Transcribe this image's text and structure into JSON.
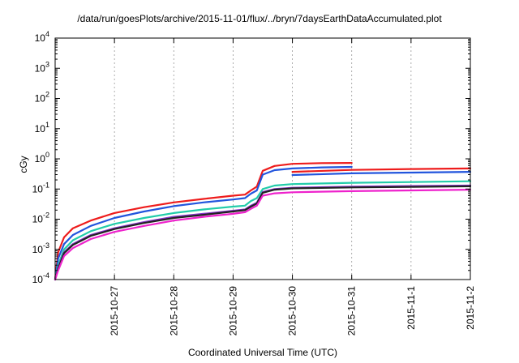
{
  "chart_data": {
    "type": "line",
    "title": "/data/run/goesPlots/archive/2015-11-01/flux/../bryn/7daysEarthDataAccumulated.plot",
    "xlabel": "Coordinated Universal Time (UTC)",
    "ylabel": "cGy",
    "y_scale": "log",
    "ylim": [
      0.0001,
      10000
    ],
    "xlim": [
      "2015-10-26",
      "2015-11-02"
    ],
    "y_ticks": [
      {
        "base": "10",
        "exp": "-4",
        "value": 0.0001
      },
      {
        "base": "10",
        "exp": "-3",
        "value": 0.001
      },
      {
        "base": "10",
        "exp": "-2",
        "value": 0.01
      },
      {
        "base": "10",
        "exp": "-1",
        "value": 0.1
      },
      {
        "base": "10",
        "exp": "0",
        "value": 1
      },
      {
        "base": "10",
        "exp": "1",
        "value": 10
      },
      {
        "base": "10",
        "exp": "2",
        "value": 100
      },
      {
        "base": "10",
        "exp": "3",
        "value": 1000
      },
      {
        "base": "10",
        "exp": "4",
        "value": 10000
      }
    ],
    "x_ticks": [
      {
        "label": "2015-10-27",
        "value": 1
      },
      {
        "label": "2015-10-28",
        "value": 2
      },
      {
        "label": "2015-10-29",
        "value": 3
      },
      {
        "label": "2015-10-30",
        "value": 4
      },
      {
        "label": "2015-10-31",
        "value": 5
      },
      {
        "label": "2015-11-1",
        "value": 6
      },
      {
        "label": "2015-11-2",
        "value": 7
      }
    ],
    "grid": true,
    "series": [
      {
        "color": "#ee1c1c",
        "points": [
          [
            0,
            0.0001
          ],
          [
            0.05,
            0.0008
          ],
          [
            0.15,
            0.0025
          ],
          [
            0.3,
            0.005
          ],
          [
            0.6,
            0.009
          ],
          [
            1,
            0.016
          ],
          [
            1.5,
            0.025
          ],
          [
            2,
            0.036
          ],
          [
            2.5,
            0.047
          ],
          [
            3,
            0.06
          ],
          [
            3.2,
            0.065
          ],
          [
            3.3,
            0.09
          ],
          [
            3.4,
            0.12
          ],
          [
            3.5,
            0.4
          ],
          [
            3.7,
            0.58
          ],
          [
            4,
            0.68
          ],
          [
            4.5,
            0.72
          ],
          [
            5,
            0.73
          ]
        ]
      },
      {
        "color": "#ee1c1c",
        "points": [
          [
            4,
            0.37
          ],
          [
            5,
            0.43
          ],
          [
            6,
            0.46
          ],
          [
            7,
            0.48
          ]
        ]
      },
      {
        "color": "#2255dd",
        "points": [
          [
            0,
            0.0001
          ],
          [
            0.05,
            0.0005
          ],
          [
            0.15,
            0.0015
          ],
          [
            0.3,
            0.003
          ],
          [
            0.6,
            0.006
          ],
          [
            1,
            0.011
          ],
          [
            1.5,
            0.018
          ],
          [
            2,
            0.027
          ],
          [
            2.5,
            0.036
          ],
          [
            3,
            0.045
          ],
          [
            3.2,
            0.05
          ],
          [
            3.3,
            0.07
          ],
          [
            3.4,
            0.09
          ],
          [
            3.5,
            0.3
          ],
          [
            3.7,
            0.42
          ],
          [
            4,
            0.48
          ],
          [
            4.5,
            0.52
          ],
          [
            5,
            0.54
          ]
        ]
      },
      {
        "color": "#2255dd",
        "points": [
          [
            4,
            0.29
          ],
          [
            5,
            0.33
          ],
          [
            6,
            0.35
          ],
          [
            7,
            0.37
          ]
        ]
      },
      {
        "color": "#22ccaa",
        "points": [
          [
            0,
            0.0001
          ],
          [
            0.05,
            0.0003
          ],
          [
            0.15,
            0.001
          ],
          [
            0.3,
            0.002
          ],
          [
            0.6,
            0.004
          ],
          [
            1,
            0.007
          ],
          [
            1.5,
            0.011
          ],
          [
            2,
            0.016
          ],
          [
            2.5,
            0.021
          ],
          [
            3,
            0.026
          ],
          [
            3.2,
            0.028
          ],
          [
            3.3,
            0.04
          ],
          [
            3.4,
            0.05
          ],
          [
            3.5,
            0.1
          ],
          [
            3.7,
            0.13
          ],
          [
            4,
            0.145
          ],
          [
            5,
            0.16
          ],
          [
            6,
            0.17
          ],
          [
            7,
            0.18
          ]
        ]
      },
      {
        "color": "#8833cc",
        "points": [
          [
            0,
            0.0001
          ],
          [
            0.05,
            0.00025
          ],
          [
            0.15,
            0.0008
          ],
          [
            0.3,
            0.0015
          ],
          [
            0.6,
            0.003
          ],
          [
            1,
            0.005
          ],
          [
            1.5,
            0.008
          ],
          [
            2,
            0.012
          ],
          [
            2.5,
            0.015
          ],
          [
            3,
            0.019
          ],
          [
            3.2,
            0.021
          ],
          [
            3.3,
            0.028
          ],
          [
            3.4,
            0.035
          ],
          [
            3.5,
            0.08
          ],
          [
            3.7,
            0.1
          ],
          [
            4,
            0.11
          ],
          [
            5,
            0.12
          ],
          [
            6,
            0.125
          ],
          [
            7,
            0.13
          ]
        ]
      },
      {
        "color": "#222222",
        "points": [
          [
            0,
            0.0001
          ],
          [
            0.05,
            0.00023
          ],
          [
            0.15,
            0.00075
          ],
          [
            0.3,
            0.0014
          ],
          [
            0.6,
            0.0028
          ],
          [
            1,
            0.0047
          ],
          [
            1.5,
            0.0075
          ],
          [
            2,
            0.011
          ],
          [
            2.5,
            0.014
          ],
          [
            3,
            0.018
          ],
          [
            3.2,
            0.02
          ],
          [
            3.3,
            0.026
          ],
          [
            3.4,
            0.033
          ],
          [
            3.5,
            0.075
          ],
          [
            3.7,
            0.095
          ],
          [
            4,
            0.105
          ],
          [
            5,
            0.113
          ],
          [
            6,
            0.118
          ],
          [
            7,
            0.123
          ]
        ]
      },
      {
        "color": "#ee22cc",
        "points": [
          [
            0,
            0.0001
          ],
          [
            0.05,
            0.0002
          ],
          [
            0.15,
            0.0006
          ],
          [
            0.3,
            0.0011
          ],
          [
            0.6,
            0.0022
          ],
          [
            1,
            0.0038
          ],
          [
            1.5,
            0.006
          ],
          [
            2,
            0.009
          ],
          [
            2.5,
            0.012
          ],
          [
            3,
            0.015
          ],
          [
            3.2,
            0.017
          ],
          [
            3.3,
            0.022
          ],
          [
            3.4,
            0.028
          ],
          [
            3.5,
            0.06
          ],
          [
            3.7,
            0.072
          ],
          [
            4,
            0.078
          ],
          [
            5,
            0.085
          ],
          [
            6,
            0.09
          ],
          [
            7,
            0.095
          ]
        ]
      }
    ]
  }
}
